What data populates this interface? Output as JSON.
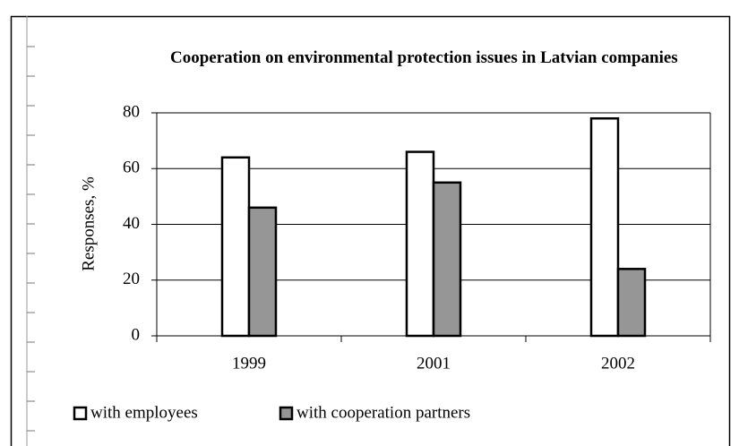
{
  "chart_data": {
    "type": "bar",
    "title": "Cooperation on environmental protection issues in Latvian companies",
    "y_label": "Responses, %",
    "categories": [
      "1999",
      "2001",
      "2002"
    ],
    "series": [
      {
        "name": "with employees",
        "color": "#ffffff",
        "values": [
          64,
          66,
          78
        ]
      },
      {
        "name": "with cooperation partners",
        "color": "#969696",
        "values": [
          46,
          55,
          24
        ]
      }
    ],
    "ylim": [
      0,
      80
    ],
    "yticks": [
      0,
      20,
      40,
      60,
      80
    ],
    "grid": true
  }
}
